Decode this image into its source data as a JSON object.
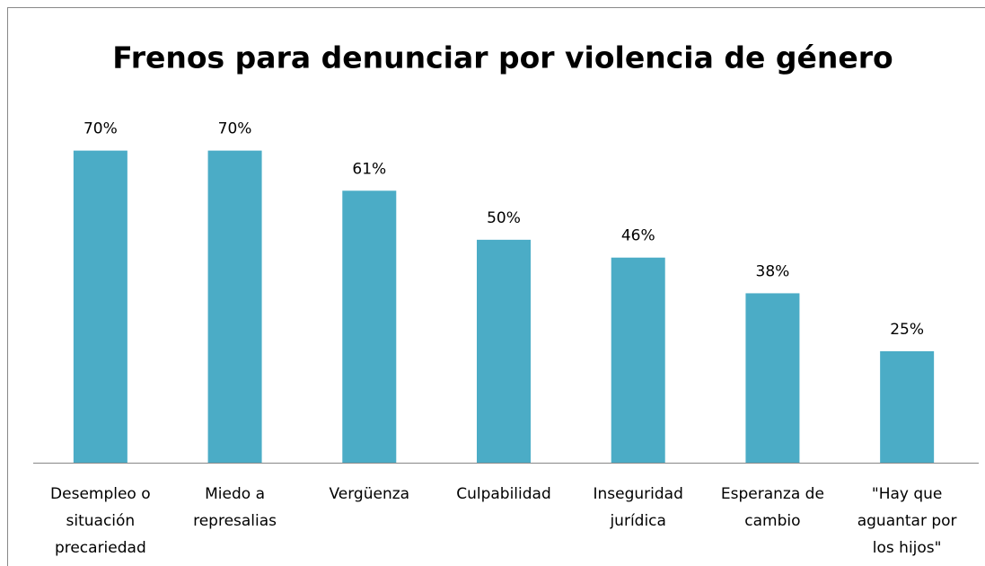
{
  "chart_data": {
    "type": "bar",
    "title": "Frenos para denunciar por violencia de género",
    "categories": [
      "Desempleo o situación precariedad",
      "Miedo a represalias",
      "Vergüenza",
      "Culpabilidad",
      "Inseguridad jurídica",
      "Esperanza de cambio",
      "\"Hay que aguantar por los hijos\""
    ],
    "values": [
      70,
      70,
      61,
      50,
      46,
      38,
      25
    ],
    "value_labels": [
      "70%",
      "70%",
      "61%",
      "50%",
      "46%",
      "38%",
      "25%"
    ],
    "color": "#4bacc6",
    "ylim": [
      0,
      80
    ]
  }
}
